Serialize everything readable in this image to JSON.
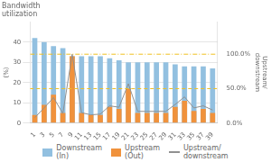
{
  "chart_data": {
    "type": "bar",
    "title": "Bandwidth\nutilization",
    "y_label": "(%)",
    "y2_label": "Upstream/\ndownstream",
    "categories": [
      "1",
      "3",
      "5",
      "7",
      "9",
      "11",
      "13",
      "15",
      "17",
      "19",
      "21",
      "23",
      "25",
      "27",
      "29",
      "31",
      "33",
      "35",
      "37",
      "39"
    ],
    "series": [
      {
        "name": "Downstream\n(In)",
        "type": "bar",
        "color": "#92c0e0",
        "values": [
          42,
          40,
          38,
          37,
          33,
          33,
          33,
          33,
          32,
          31,
          30,
          30,
          30,
          30,
          30,
          29,
          28,
          28,
          28,
          27
        ]
      },
      {
        "name": "Upstream\n(Out)",
        "type": "bar",
        "color": "#f0923c",
        "values": [
          4,
          9,
          14,
          5,
          33,
          5,
          4,
          4,
          8,
          7,
          17,
          5,
          5,
          5,
          5,
          8,
          11,
          6,
          7,
          5
        ]
      },
      {
        "name": "Upstream/\ndownstream",
        "type": "line",
        "axis": "y2",
        "color": "#909090",
        "values": [
          0.08,
          0.22,
          0.37,
          0.14,
          1.0,
          0.15,
          0.12,
          0.13,
          0.25,
          0.23,
          0.57,
          0.17,
          0.17,
          0.17,
          0.17,
          0.27,
          0.38,
          0.22,
          0.25,
          0.19
        ]
      }
    ],
    "reference_lines": [
      {
        "value": 34.0,
        "color": "#f0c020",
        "line_style": "dashdot"
      },
      {
        "value": 17.0,
        "color": "#f0c020",
        "line_style": "dashed"
      }
    ],
    "ylim": [
      0,
      50
    ],
    "yticks": [
      0,
      10,
      20,
      30,
      40
    ],
    "y2lim": [
      0.0,
      1.47
    ],
    "y2ticks": [
      {
        "value": 0.0,
        "label": "0.0%"
      },
      {
        "value": 0.5,
        "label": "50.0%"
      },
      {
        "value": 1.0,
        "label": "100.0%"
      }
    ],
    "grid": true,
    "legend": "bottom"
  }
}
